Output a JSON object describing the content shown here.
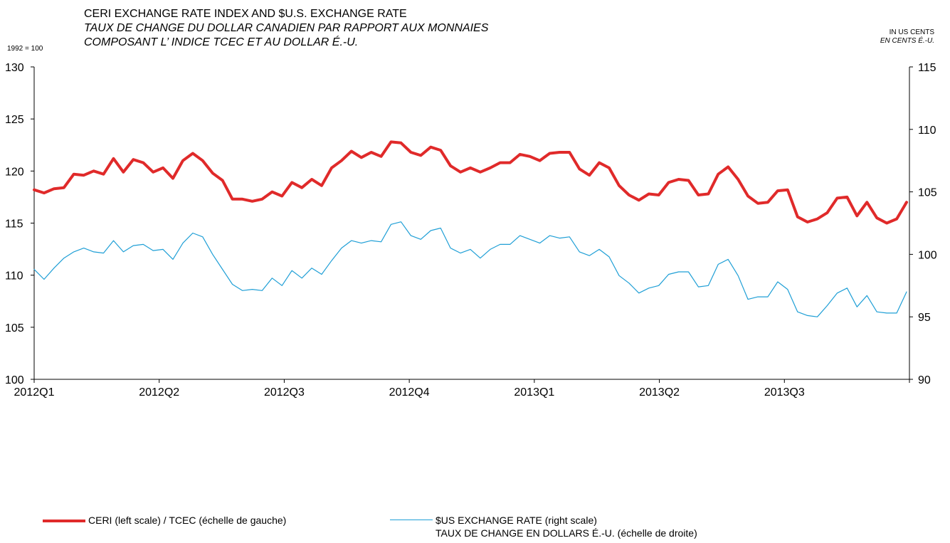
{
  "chart_data": {
    "type": "line",
    "title_lines": [
      "CERI EXCHANGE RATE INDEX AND $U.S. EXCHANGE RATE",
      "TAUX DE CHANGE DU DOLLAR CANADIEN PAR RAPPORT AUX MONNAIES",
      "COMPOSANT L’ INDICE TCEC ET AU DOLLAR É.-U."
    ],
    "left_axis_label": "1992 = 100",
    "right_axis_label_lines": [
      "IN US CENTS",
      "EN CENTS É.-U."
    ],
    "left_ylim": [
      100,
      130
    ],
    "left_ticks": [
      "130",
      "125",
      "120",
      "115",
      "110",
      "105",
      "100"
    ],
    "right_ylim": [
      90,
      115
    ],
    "right_ticks": [
      "115",
      "110",
      "105",
      "100",
      "95",
      "90"
    ],
    "x_tick_labels": [
      "2012Q1",
      "2012Q2",
      "2012Q3",
      "2012Q4",
      "2013Q1",
      "2013Q2",
      "2013Q3"
    ],
    "grid": false,
    "legend_position": "bottom",
    "series": [
      {
        "name": "CERI (left scale) / TCEC (échelle de gauche)",
        "axis": "left",
        "color": "#e02a2a",
        "values": [
          118.2,
          117.9,
          118.3,
          118.4,
          119.7,
          119.6,
          120.0,
          119.7,
          121.2,
          119.9,
          121.1,
          120.8,
          119.9,
          120.3,
          119.3,
          121.0,
          121.7,
          121.0,
          119.8,
          119.1,
          117.3,
          117.3,
          117.1,
          117.3,
          118.0,
          117.6,
          118.9,
          118.4,
          119.2,
          118.6,
          120.3,
          121.0,
          121.9,
          121.3,
          121.8,
          121.4,
          122.8,
          122.7,
          121.8,
          121.5,
          122.3,
          122.0,
          120.5,
          119.9,
          120.3,
          119.9,
          120.3,
          120.8,
          120.8,
          121.6,
          121.4,
          121.0,
          121.7,
          121.8,
          121.8,
          120.2,
          119.6,
          120.8,
          120.3,
          118.6,
          117.7,
          117.2,
          117.8,
          117.7,
          118.9,
          119.2,
          119.1,
          117.7,
          117.8,
          119.7,
          120.4,
          119.2,
          117.6,
          116.9,
          117.0,
          118.1,
          118.2,
          115.6,
          115.1,
          115.4,
          116.0,
          117.4,
          117.5,
          115.7,
          117.0,
          115.5,
          115.0,
          115.4,
          117.0
        ]
      },
      {
        "name": "$US EXCHANGE RATE (right scale)",
        "name_fr": "TAUX DE CHANGE EN DOLLARS É.-U. (échelle de droite)",
        "axis": "right",
        "color": "#1f9fd6",
        "values": [
          98.8,
          98.0,
          98.9,
          99.7,
          100.2,
          100.5,
          100.2,
          100.1,
          101.1,
          100.2,
          100.7,
          100.8,
          100.3,
          100.4,
          99.6,
          100.9,
          101.7,
          101.4,
          100.0,
          98.8,
          97.6,
          97.1,
          97.2,
          97.1,
          98.1,
          97.5,
          98.7,
          98.1,
          98.9,
          98.4,
          99.5,
          100.5,
          101.1,
          100.9,
          101.1,
          101.0,
          102.4,
          102.6,
          101.5,
          101.2,
          101.9,
          102.1,
          100.5,
          100.1,
          100.4,
          99.7,
          100.4,
          100.8,
          100.8,
          101.5,
          101.2,
          100.9,
          101.5,
          101.3,
          101.4,
          100.2,
          99.9,
          100.4,
          99.8,
          98.3,
          97.7,
          96.9,
          97.3,
          97.5,
          98.4,
          98.6,
          98.6,
          97.4,
          97.5,
          99.2,
          99.6,
          98.3,
          96.4,
          96.6,
          96.6,
          97.8,
          97.2,
          95.4,
          95.1,
          95.0,
          95.9,
          96.9,
          97.3,
          95.8,
          96.7,
          95.4,
          95.3,
          95.3,
          97.0
        ]
      }
    ]
  },
  "colors": {
    "ceri": "#e02a2a",
    "usd": "#1f9fd6",
    "axis": "#000000"
  }
}
